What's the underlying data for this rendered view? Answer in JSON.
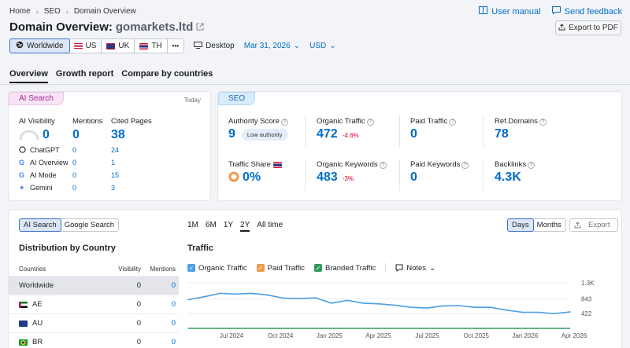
{
  "breadcrumb": [
    "Home",
    "SEO",
    "Domain Overview"
  ],
  "top_links": {
    "manual": "User manual",
    "feedback": "Send feedback"
  },
  "title": {
    "prefix": "Domain Overview:",
    "domain": "gomarkets.ltd"
  },
  "export_pdf": "Export to PDF",
  "databases": [
    {
      "label": "Worldwide",
      "active": true
    },
    {
      "label": "US"
    },
    {
      "label": "UK"
    },
    {
      "label": "TH"
    }
  ],
  "more_label": "•••",
  "device": "Desktop",
  "date": "Mar 31, 2026",
  "currency": "USD",
  "tabs": [
    "Overview",
    "Growth report",
    "Compare by countries"
  ],
  "ai_search": {
    "pill": "AI Search",
    "today": "Today",
    "headers": {
      "visibility": "AI Visibility",
      "mentions": "Mentions",
      "cited": "Cited Pages"
    },
    "totals": {
      "visibility": "0",
      "mentions": "0",
      "cited": "38"
    },
    "rows": [
      {
        "name": "ChatGPT",
        "mentions": "0",
        "cited": "24"
      },
      {
        "name": "AI Overview",
        "mentions": "0",
        "cited": "1"
      },
      {
        "name": "AI Mode",
        "mentions": "0",
        "cited": "15"
      },
      {
        "name": "Gemini",
        "mentions": "0",
        "cited": "3"
      }
    ]
  },
  "seo": {
    "pill": "SEO",
    "authority": {
      "label": "Authority Score",
      "value": "9",
      "badge": "Low authority"
    },
    "organic_traffic": {
      "label": "Organic Traffic",
      "value": "472",
      "delta": "-4.6%"
    },
    "paid_traffic": {
      "label": "Paid Traffic",
      "value": "0"
    },
    "ref_domains": {
      "label": "Ref.Domains",
      "value": "78"
    },
    "traffic_share": {
      "label": "Traffic Share",
      "value": "0%"
    },
    "organic_keywords": {
      "label": "Organic Keywords",
      "value": "483",
      "delta": "-3%"
    },
    "paid_keywords": {
      "label": "Paid Keywords",
      "value": "0"
    },
    "backlinks": {
      "label": "Backlinks",
      "value": "4.3K"
    }
  },
  "bottom": {
    "source_toggle": [
      "AI Search",
      "Google Search"
    ],
    "ranges": [
      "1M",
      "6M",
      "1Y",
      "2Y",
      "All time"
    ],
    "active_range": "2Y",
    "granularity": [
      "Days",
      "Months"
    ],
    "export": "Export",
    "dist_title": "Distribution by Country",
    "traffic_title": "Traffic",
    "table_headers": {
      "country": "Countries",
      "visibility": "Visibility",
      "mentions": "Mentions"
    },
    "table_rows": [
      {
        "country": "Worldwide",
        "visibility": "0",
        "mentions": "0"
      },
      {
        "country": "AE",
        "visibility": "0",
        "mentions": "0"
      },
      {
        "country": "AU",
        "visibility": "0",
        "mentions": "0"
      },
      {
        "country": "BR",
        "visibility": "0",
        "mentions": "0"
      }
    ],
    "legend": [
      "Organic Traffic",
      "Paid Traffic",
      "Branded Traffic"
    ],
    "notes": "Notes"
  },
  "colors": {
    "accent": "#006dca",
    "organic": "#4a9fe3",
    "paid": "#f2994a",
    "branded": "#2e9b5e"
  },
  "chart_data": {
    "type": "line",
    "title": "Traffic",
    "x_ticks": [
      "Jul 2024",
      "Oct 2024",
      "Jan 2025",
      "Apr 2025",
      "Jul 2025",
      "Oct 2025",
      "Jan 2026",
      "Apr 2026"
    ],
    "y_ticks": [
      "1.3K",
      "843",
      "422"
    ],
    "ylim": [
      0,
      1300
    ],
    "series": [
      {
        "name": "Organic Traffic",
        "x": [
          "2024-04",
          "2024-05",
          "2024-06",
          "2024-07",
          "2024-08",
          "2024-09",
          "2024-10",
          "2024-11",
          "2024-12",
          "2025-01",
          "2025-02",
          "2025-03",
          "2025-04",
          "2025-05",
          "2025-06",
          "2025-07",
          "2025-08",
          "2025-09",
          "2025-10",
          "2025-11",
          "2025-12",
          "2026-01",
          "2026-02",
          "2026-03",
          "2026-04"
        ],
        "values": [
          820,
          900,
          1000,
          980,
          1000,
          950,
          860,
          850,
          870,
          720,
          800,
          720,
          700,
          660,
          600,
          580,
          640,
          650,
          600,
          600,
          520,
          460,
          460,
          420,
          470
        ]
      },
      {
        "name": "Paid Traffic",
        "values": []
      },
      {
        "name": "Branded Traffic",
        "values": []
      }
    ]
  }
}
